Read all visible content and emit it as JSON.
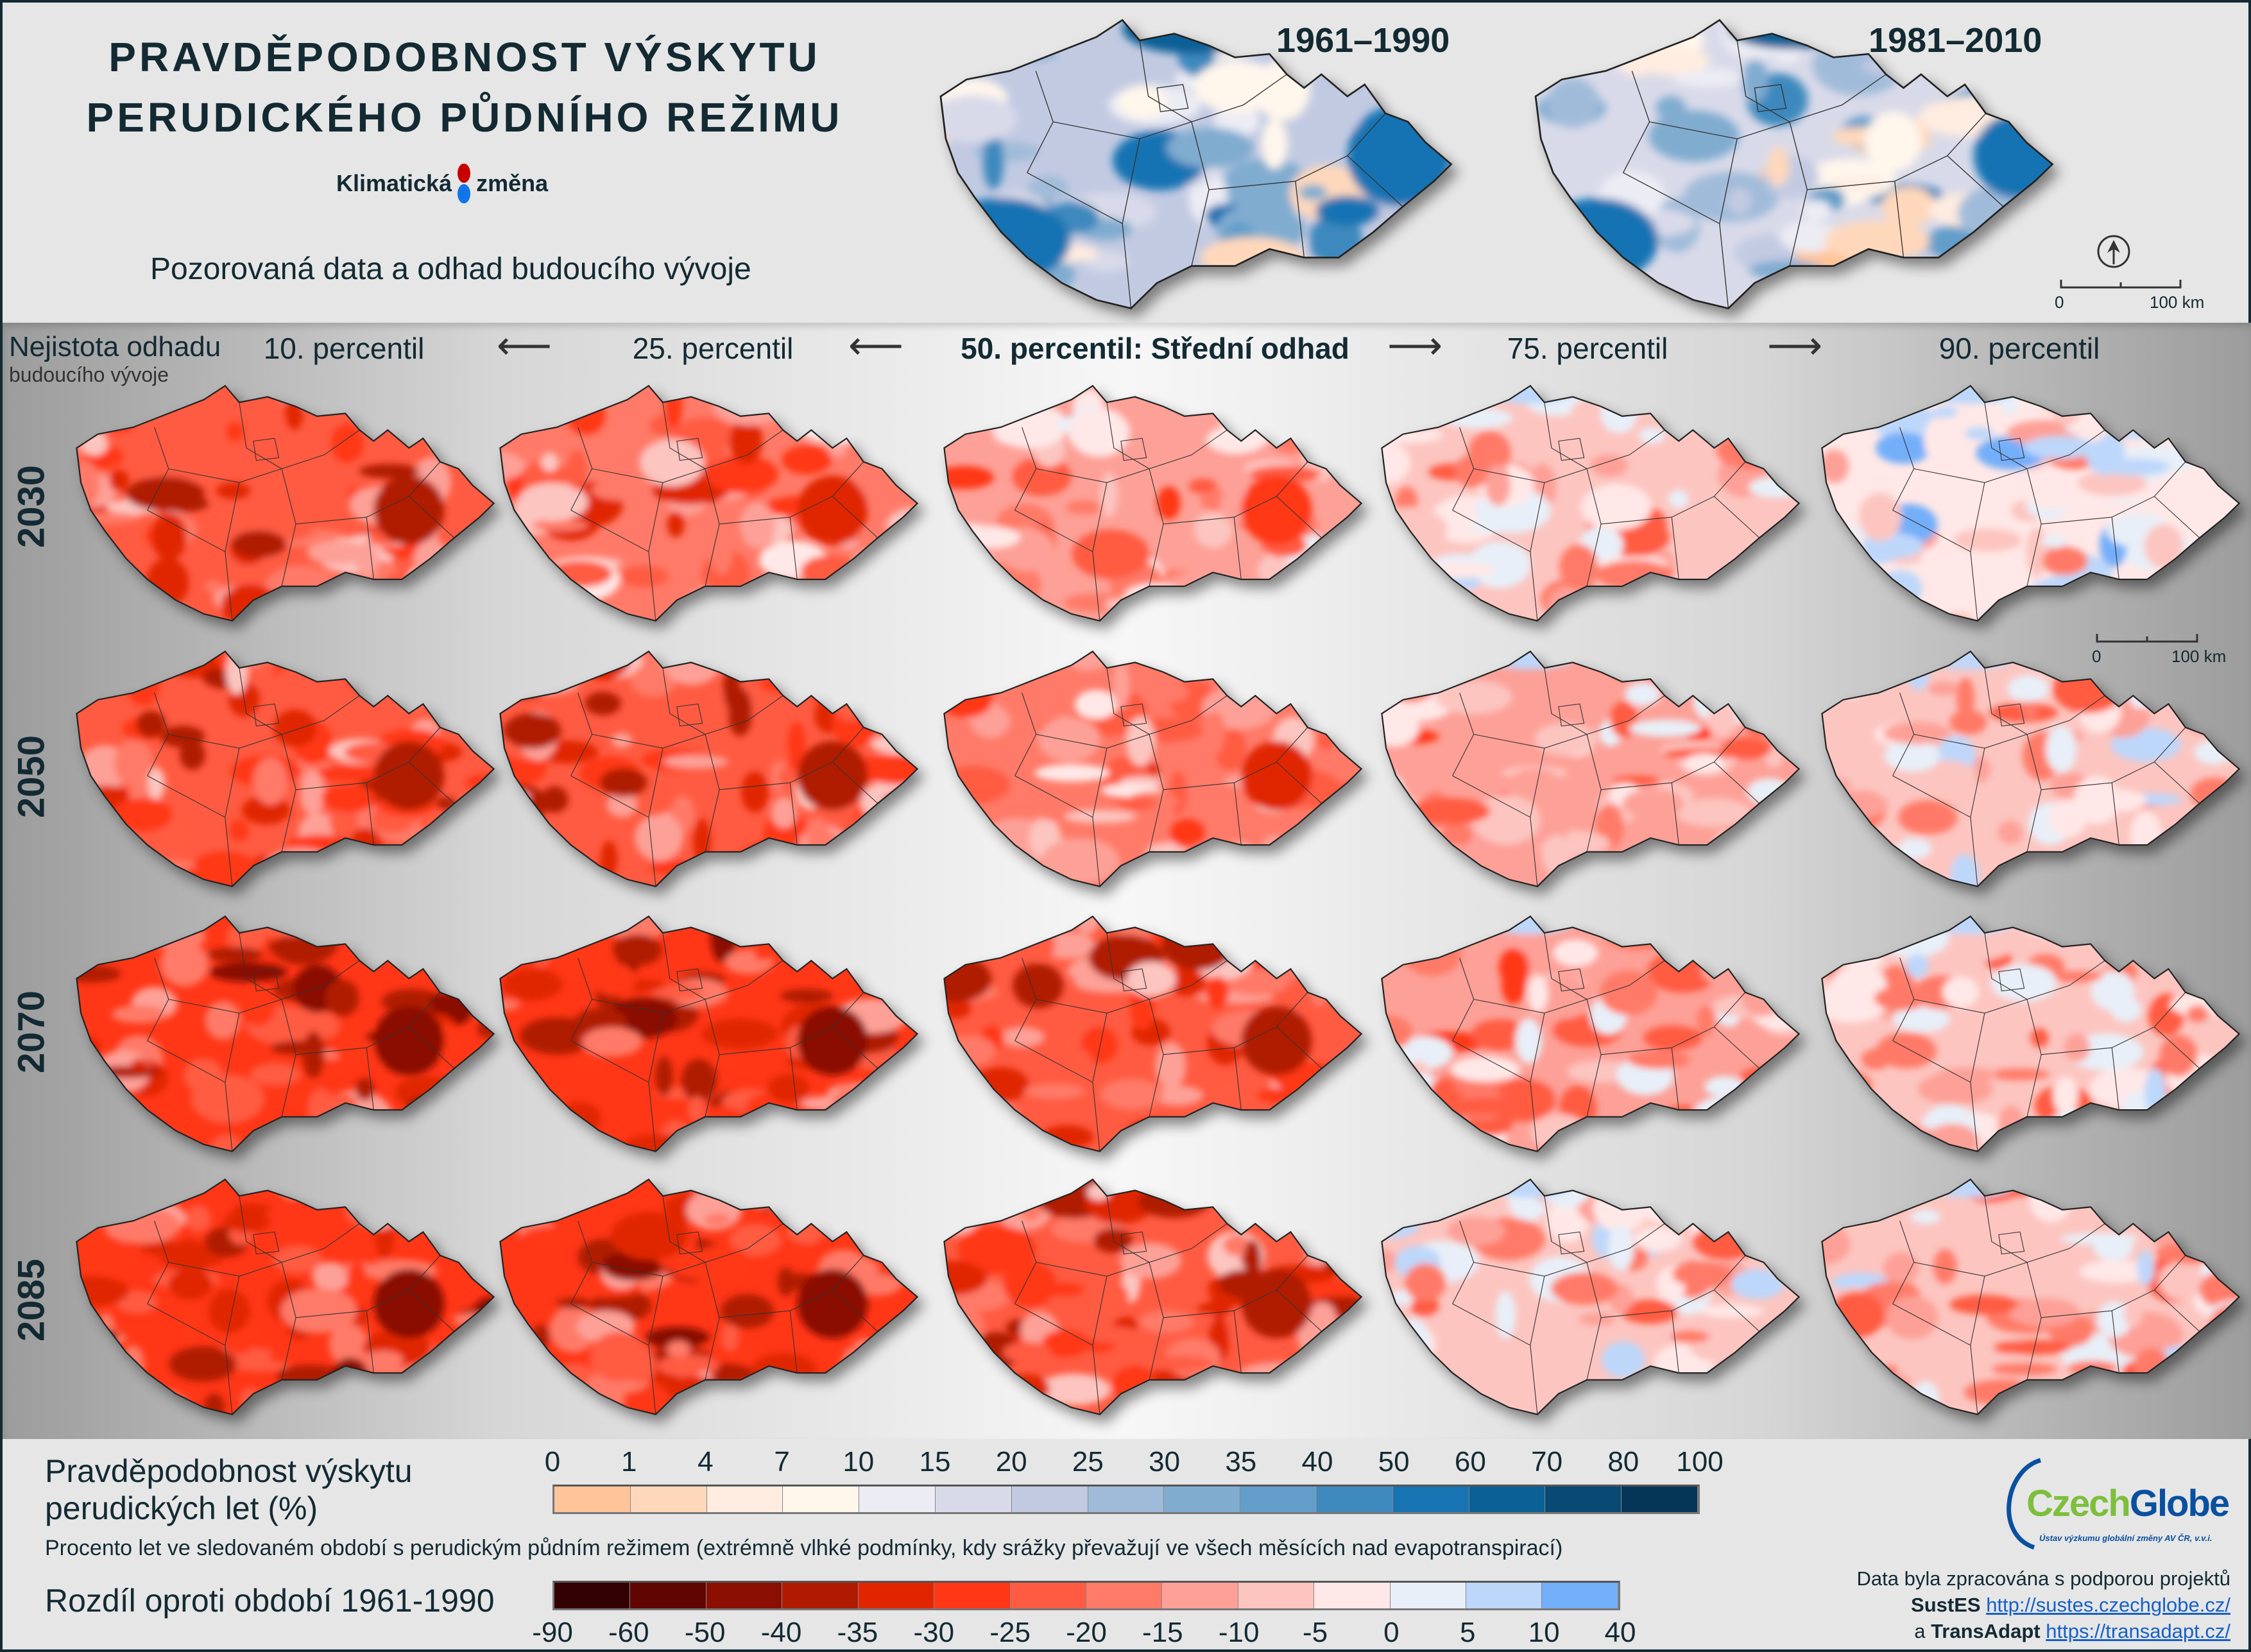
{
  "header": {
    "title_line1": "PRAVDĚPODOBNOST VÝSKYTU",
    "title_line2": "PERUDICKÉHO PŮDNÍHO REŽIMU",
    "logo_left": "Klimatická",
    "logo_right": "změna",
    "subtitle": "Pozorovaná data a odhad budoucího vývoje"
  },
  "observed": {
    "periods": [
      "1961–1990",
      "1981–2010"
    ],
    "scale": {
      "zero": "0",
      "end": "100 km"
    }
  },
  "projection": {
    "uncertainty_label": "Nejistota odhadu",
    "uncertainty_sub": "budoucího vývoje",
    "columns": [
      "10. percentil",
      "25. percentil",
      "50. percentil: Střední odhad",
      "75. percentil",
      "90. percentil"
    ],
    "rows": [
      "2030",
      "2050",
      "2070",
      "2085"
    ],
    "scale": {
      "zero": "0",
      "end": "100 km"
    }
  },
  "legend": {
    "prob_title_1": "Pravděpodobnost výskytu",
    "prob_title_2": "perudických let (%)",
    "prob_ticks": [
      "0",
      "1",
      "4",
      "7",
      "10",
      "15",
      "20",
      "25",
      "30",
      "35",
      "40",
      "50",
      "60",
      "70",
      "80",
      "100"
    ],
    "prob_colors": [
      "#ffc499",
      "#ffd8bb",
      "#ffece0",
      "#fff6ec",
      "#ececf4",
      "#d9dae9",
      "#c2cae2",
      "#a0bbd9",
      "#80acd0",
      "#629ec9",
      "#3e89be",
      "#1873b3",
      "#0a6196",
      "#084a73",
      "#053658"
    ],
    "description": "Procento let ve sledovaném období s perudickým půdním režimem (extrémně vlhké podmínky, kdy srážky převažují ve všech měsících nad evapotranspirací)",
    "diff_title": "Rozdíl oproti období 1961-1990",
    "diff_ticks": [
      "-90",
      "-60",
      "-50",
      "-40",
      "-35",
      "-30",
      "-25",
      "-20",
      "-15",
      "-10",
      "-5",
      "0",
      "5",
      "10",
      "40"
    ],
    "diff_colors": [
      "#330000",
      "#600500",
      "#8a0f00",
      "#b01a00",
      "#e02500",
      "#ff3717",
      "#ff5b42",
      "#ff7a68",
      "#fda097",
      "#fcc5c0",
      "#ffe8e7",
      "#e8eff8",
      "#bdd7fa",
      "#73aef9"
    ]
  },
  "logo": {
    "name_a": "Czech",
    "name_b": "Globe",
    "tagline": "Ústav výzkumu globální změny AV ČR, v.v.i."
  },
  "credits": {
    "line1": "Data byla zpracována s podporou projektů",
    "p1": "SustES",
    "u1": "http://sustes.czechglobe.cz/",
    "and": "a",
    "p2": "TransAdapt",
    "u2": "https://transadapt.cz/"
  }
}
